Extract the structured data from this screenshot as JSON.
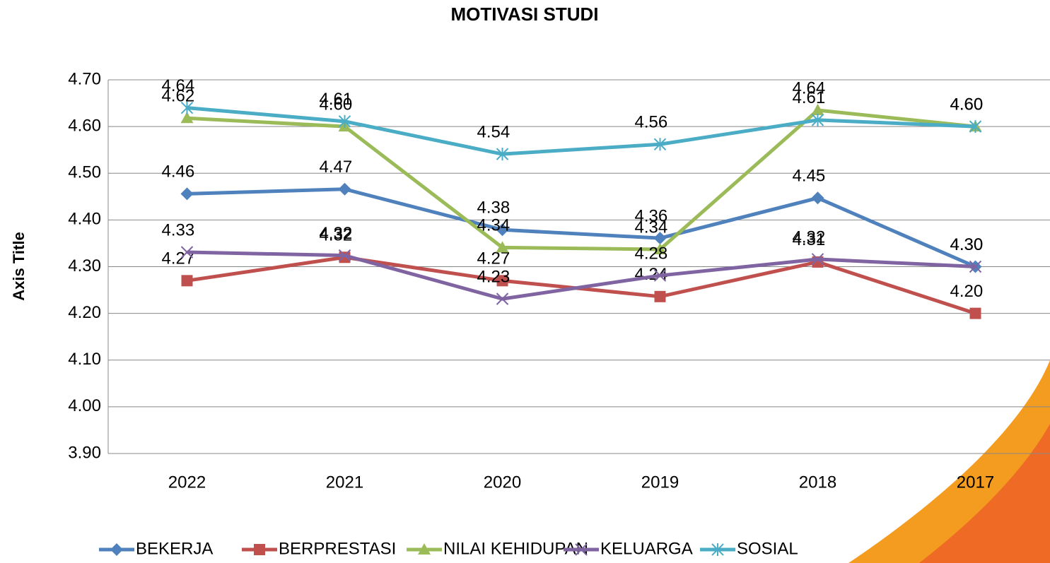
{
  "chart_data": {
    "type": "line",
    "title": "MOTIVASI STUDI",
    "y_axis_label": "Axis Title",
    "categories": [
      "2022",
      "2021",
      "2020",
      "2019",
      "2018",
      "2017"
    ],
    "ylim": [
      3.9,
      4.7
    ],
    "yticks": [
      {
        "value": 3.9,
        "label": "3.90"
      },
      {
        "value": 4.0,
        "label": "4.00"
      },
      {
        "value": 4.1,
        "label": "4.10"
      },
      {
        "value": 4.2,
        "label": "4.20"
      },
      {
        "value": 4.3,
        "label": "4.30"
      },
      {
        "value": 4.4,
        "label": "4.40"
      },
      {
        "value": 4.5,
        "label": "4.50"
      },
      {
        "value": 4.6,
        "label": "4.60"
      },
      {
        "value": 4.7,
        "label": "4.70"
      }
    ],
    "grid": true,
    "legend": "bottom",
    "series": [
      {
        "name": "BEKERJA",
        "color": "#4f81bd",
        "values": [
          4.456,
          4.466,
          4.379,
          4.361,
          4.447,
          4.3
        ],
        "value_labels": [
          "4.46",
          "4.47",
          "4.38",
          "4.36",
          "4.45",
          "4.30"
        ]
      },
      {
        "name": "BERPRESTASI",
        "color": "#c0504d",
        "values": [
          4.27,
          4.32,
          4.27,
          4.236,
          4.31,
          4.2
        ],
        "value_labels": [
          "4.27",
          "4.32",
          "4.27",
          "4.24",
          "4.31",
          "4.20"
        ]
      },
      {
        "name": "NILAI KEHIDUPAN",
        "color": "#9bbb59",
        "values": [
          4.618,
          4.6,
          4.341,
          4.337,
          4.635,
          4.6
        ],
        "value_labels": [
          "4.62",
          "4.60",
          "4.34",
          "4.34",
          "4.64",
          "4.60"
        ]
      },
      {
        "name": "KELUARGA",
        "color": "#8064a2",
        "values": [
          4.331,
          4.324,
          4.231,
          4.281,
          4.316,
          4.3
        ],
        "value_labels": [
          "4.33",
          "4.32",
          "4.23",
          "4.28",
          "4.32",
          "4.30"
        ]
      },
      {
        "name": "SOSIAL",
        "color": "#4bacc6",
        "values": [
          4.64,
          4.611,
          4.541,
          4.562,
          4.614,
          4.6
        ],
        "value_labels": [
          "4.64",
          "4.61",
          "4.54",
          "4.56",
          "4.61",
          "4.60"
        ]
      }
    ]
  }
}
